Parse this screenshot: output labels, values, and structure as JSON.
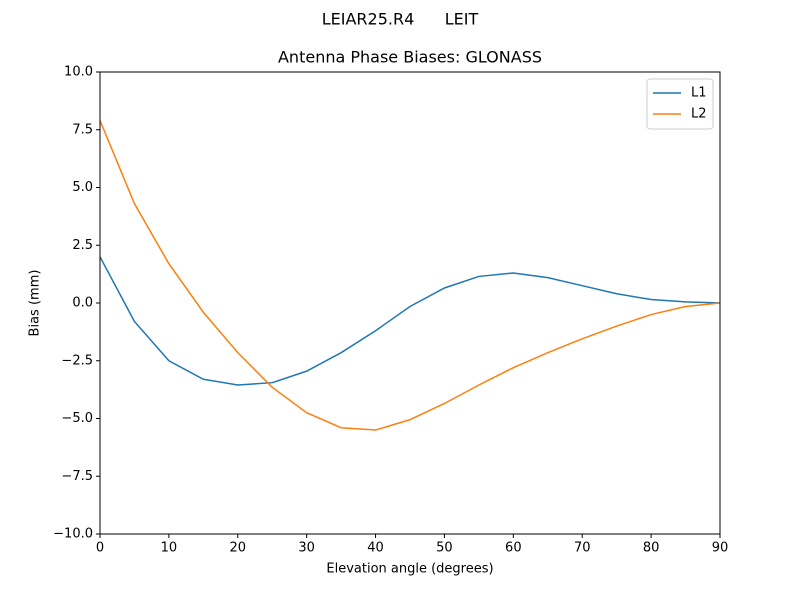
{
  "chart_data": {
    "type": "line",
    "suptitle": "LEIAR25.R4      LEIT",
    "title": "Antenna Phase Biases: GLONASS",
    "xlabel": "Elevation angle (degrees)",
    "ylabel": "Bias (mm)",
    "x": [
      0,
      5,
      10,
      15,
      20,
      25,
      30,
      35,
      40,
      45,
      50,
      55,
      60,
      65,
      70,
      75,
      80,
      85,
      90
    ],
    "series": [
      {
        "name": "L1",
        "color": "#1f77b4",
        "values": [
          2.0,
          -0.8,
          -2.5,
          -3.3,
          -3.55,
          -3.45,
          -2.95,
          -2.15,
          -1.2,
          -0.15,
          0.65,
          1.15,
          1.3,
          1.1,
          0.75,
          0.4,
          0.15,
          0.05,
          0
        ]
      },
      {
        "name": "L2",
        "color": "#ff7f0e",
        "values": [
          7.9,
          4.3,
          1.7,
          -0.4,
          -2.15,
          -3.65,
          -4.75,
          -5.4,
          -5.5,
          -5.05,
          -4.35,
          -3.55,
          -2.8,
          -2.15,
          -1.55,
          -1.0,
          -0.5,
          -0.15,
          0
        ]
      }
    ],
    "xlim": [
      0,
      90
    ],
    "xticks": [
      0,
      10,
      20,
      30,
      40,
      50,
      60,
      70,
      80,
      90
    ],
    "ylim": [
      -10,
      10
    ],
    "yticks": [
      {
        "value": -10,
        "label": "−10.0"
      },
      {
        "value": -7.5,
        "label": "−7.5"
      },
      {
        "value": -5,
        "label": "−5.0"
      },
      {
        "value": -2.5,
        "label": "−2.5"
      },
      {
        "value": 0,
        "label": "0.0"
      },
      {
        "value": 2.5,
        "label": "2.5"
      },
      {
        "value": 5,
        "label": "5.0"
      },
      {
        "value": 7.5,
        "label": "7.5"
      },
      {
        "value": 10,
        "label": "10.0"
      }
    ],
    "grid": false,
    "legend": "upper right"
  }
}
